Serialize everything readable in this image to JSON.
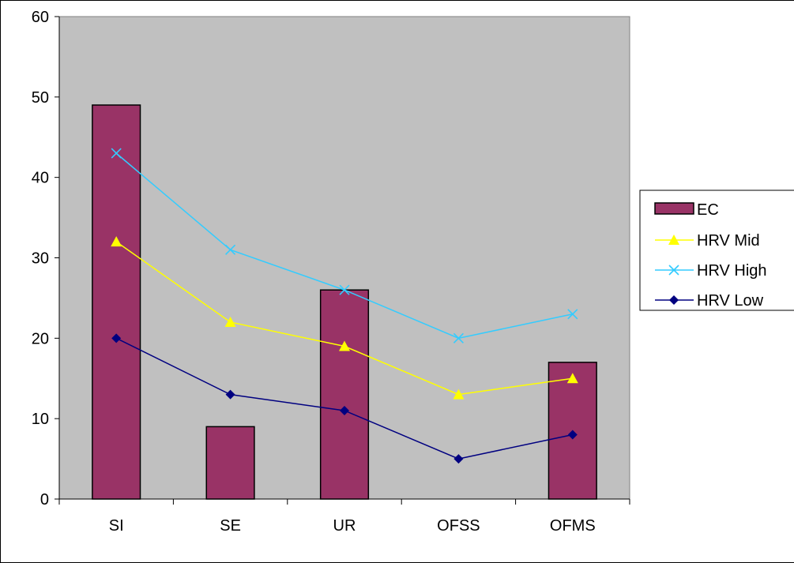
{
  "chart_data": {
    "type": "bar",
    "categories": [
      "SI",
      "SE",
      "UR",
      "OFSS",
      "OFMS"
    ],
    "ylim": [
      0,
      60
    ],
    "yticks": [
      0,
      10,
      20,
      30,
      40,
      50,
      60
    ],
    "grid": false,
    "legend_position": "right",
    "plot_background": "#C0C0C0",
    "bar_series": {
      "name": "EC",
      "color": "#993366",
      "values": [
        49,
        9,
        26,
        0,
        17
      ]
    },
    "line_series": [
      {
        "name": "HRV Mid",
        "color": "#FFFF00",
        "marker": "triangle",
        "values": [
          32,
          22,
          19,
          13,
          15
        ]
      },
      {
        "name": "HRV High",
        "color": "#33CCFF",
        "marker": "x",
        "values": [
          43,
          31,
          26,
          20,
          23
        ]
      },
      {
        "name": "HRV Low",
        "color": "#000080",
        "marker": "diamond",
        "values": [
          20,
          13,
          11,
          5,
          8
        ]
      }
    ],
    "legend_order": [
      "EC",
      "HRV Mid",
      "HRV High",
      "HRV Low"
    ]
  }
}
